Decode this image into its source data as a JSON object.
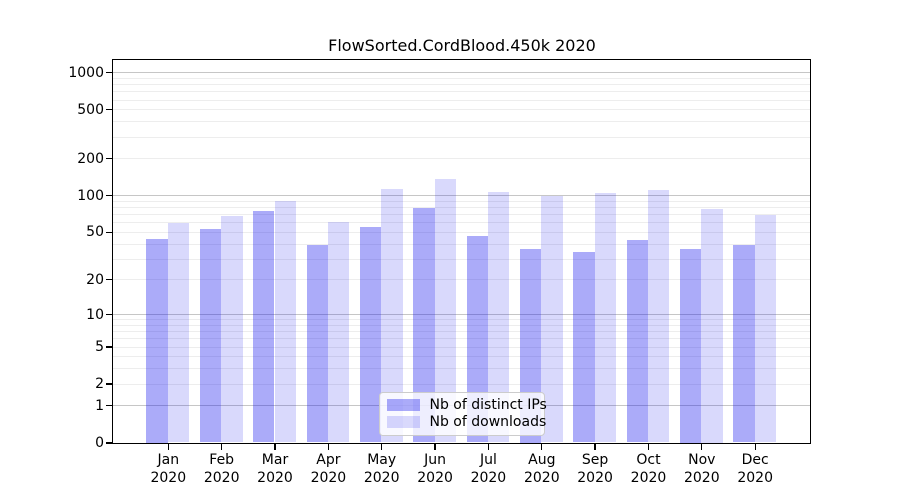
{
  "chart_data": {
    "type": "bar",
    "title": "FlowSorted.CordBlood.450k 2020",
    "categories": [
      "Jan",
      "Feb",
      "Mar",
      "Apr",
      "May",
      "Jun",
      "Jul",
      "Aug",
      "Sep",
      "Oct",
      "Nov",
      "Dec"
    ],
    "category_year": "2020",
    "series": [
      {
        "name": "Nb of distinct IPs",
        "color": "rgba(15,15,237,0.35)",
        "values": [
          44,
          53,
          74,
          39,
          55,
          78,
          46,
          36,
          34,
          43,
          36,
          39
        ]
      },
      {
        "name": "Nb of downloads",
        "color": "rgba(15,15,237,0.155)",
        "values": [
          59,
          67,
          90,
          60,
          113,
          135,
          107,
          99,
          104,
          110,
          77,
          69
        ]
      }
    ],
    "xlabel": "",
    "ylabel": "",
    "y_axis": {
      "scale": "log1p",
      "ticks": [
        0,
        1,
        2,
        5,
        10,
        20,
        50,
        100,
        200,
        500,
        1000
      ],
      "top_value": 1268,
      "major_gridlines": [
        1,
        10,
        100,
        1000
      ],
      "minor_gridline_decades": [
        1,
        10,
        100
      ]
    },
    "grid": true,
    "legend_position": "lower-center"
  }
}
